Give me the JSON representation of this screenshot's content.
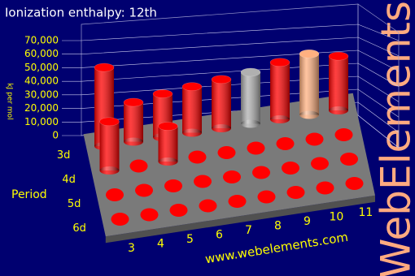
{
  "chart_data": {
    "type": "bar3d",
    "title": "Ionization enthalpy: 12th",
    "y_label": "kJ per mol",
    "row_axis_label": "Period",
    "watermark": "www.webelements.com",
    "brand": "WebElements",
    "categories": [
      "3",
      "4",
      "5",
      "6",
      "7",
      "8",
      "9",
      "10",
      "11"
    ],
    "series": [
      {
        "name": "3d",
        "color": "#ff0000",
        "colors": [
          "#ff0000",
          "#ff0000",
          "#ff0000",
          "#ff0000",
          "#ff0000",
          "#b0b0b0",
          "#ff0000",
          "#ffb080",
          "#ff0000"
        ],
        "values": [
          58000,
          29000,
          32000,
          34000,
          36000,
          38000,
          42000,
          45000,
          40000
        ]
      },
      {
        "name": "4d",
        "color": "#ff0000",
        "values": [
          36000,
          null,
          26000,
          null,
          null,
          null,
          null,
          null,
          null
        ]
      },
      {
        "name": "5d",
        "color": "#ff0000",
        "values": [
          null,
          null,
          null,
          null,
          null,
          null,
          null,
          null,
          null
        ]
      },
      {
        "name": "6d",
        "color": "#ff0000",
        "values": [
          null,
          null,
          null,
          null,
          null,
          null,
          null,
          null,
          null
        ]
      }
    ],
    "ylim": [
      0,
      70000
    ],
    "yticks": [
      0,
      {
        "value": 10000,
        "label": "10,000"
      },
      {
        "value": 20000,
        "label": "20,000"
      },
      {
        "value": 30000,
        "label": "30,000"
      },
      {
        "value": 40000,
        "label": "40,000"
      },
      {
        "value": 50000,
        "label": "50,000"
      },
      {
        "value": 60000,
        "label": "60,000"
      },
      {
        "value": 70000,
        "label": "70,000"
      }
    ],
    "grid": true
  }
}
